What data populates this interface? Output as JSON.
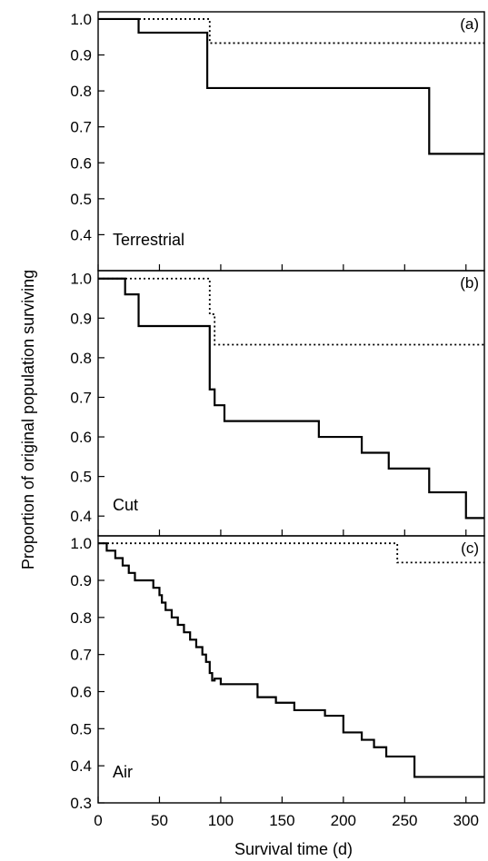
{
  "chart_data": {
    "type": "line",
    "y_axis_label": "Proportion of original population surviving",
    "x_axis_label": "Survival time (d)",
    "x_ticks": [
      0,
      50,
      100,
      150,
      200,
      250,
      300
    ],
    "x_tick_labels": [
      "0",
      "50",
      "100",
      "150",
      "200",
      "250",
      "300"
    ],
    "xlim": [
      0,
      315
    ],
    "panels": [
      {
        "tag": "(a)",
        "name": "Terrestrial",
        "ylim": [
          0.3,
          1.02
        ],
        "y_ticks": [
          0.4,
          0.5,
          0.6,
          0.7,
          0.8,
          0.9,
          1.0
        ],
        "y_tick_labels": [
          "0.4",
          "0.5",
          "0.6",
          "0.7",
          "0.8",
          "0.9",
          "1.0"
        ],
        "series": [
          {
            "style": "solid",
            "x": [
              0,
              33,
              89,
              270,
              315
            ],
            "y": [
              1.0,
              0.962,
              0.808,
              0.625,
              0.625
            ]
          },
          {
            "style": "dotted",
            "x": [
              0,
              91,
              315
            ],
            "y": [
              1.0,
              0.933,
              0.933
            ]
          }
        ]
      },
      {
        "tag": "(b)",
        "name": "Cut",
        "ylim": [
          0.35,
          1.02
        ],
        "y_ticks": [
          0.4,
          0.5,
          0.6,
          0.7,
          0.8,
          0.9,
          1.0
        ],
        "y_tick_labels": [
          "0.4",
          "0.5",
          "0.6",
          "0.7",
          "0.8",
          "0.9",
          "1.0"
        ],
        "series": [
          {
            "style": "solid",
            "x": [
              0,
              22,
              33,
              89,
              91,
              95,
              103,
              180,
              215,
              237,
              270,
              300,
              315
            ],
            "y": [
              1.0,
              0.96,
              0.88,
              0.88,
              0.72,
              0.68,
              0.64,
              0.6,
              0.56,
              0.52,
              0.46,
              0.395,
              0.395
            ]
          },
          {
            "style": "dotted",
            "x": [
              0,
              91,
              95,
              315
            ],
            "y": [
              1.0,
              0.91,
              0.833,
              0.833
            ]
          }
        ]
      },
      {
        "tag": "(c)",
        "name": "Air",
        "ylim": [
          0.3,
          1.02
        ],
        "y_ticks": [
          0.3,
          0.4,
          0.5,
          0.6,
          0.7,
          0.8,
          0.9,
          1.0
        ],
        "y_tick_labels": [
          "0.3",
          "0.4",
          "0.5",
          "0.6",
          "0.7",
          "0.8",
          "0.9",
          "1.0"
        ],
        "series": [
          {
            "style": "solid",
            "x": [
              0,
              7,
              14,
              20,
              25,
              30,
              45,
              50,
              52,
              55,
              60,
              65,
              70,
              75,
              80,
              85,
              88,
              91,
              93,
              95,
              100,
              130,
              145,
              160,
              185,
              200,
              215,
              225,
              235,
              258,
              315
            ],
            "y": [
              1.0,
              0.98,
              0.96,
              0.94,
              0.92,
              0.9,
              0.88,
              0.86,
              0.84,
              0.82,
              0.8,
              0.78,
              0.76,
              0.74,
              0.72,
              0.7,
              0.68,
              0.65,
              0.63,
              0.635,
              0.62,
              0.585,
              0.57,
              0.55,
              0.535,
              0.49,
              0.47,
              0.45,
              0.425,
              0.37,
              0.37
            ]
          },
          {
            "style": "dotted",
            "x": [
              0,
              244,
              315
            ],
            "y": [
              1.0,
              0.948,
              0.948
            ]
          }
        ]
      }
    ]
  }
}
